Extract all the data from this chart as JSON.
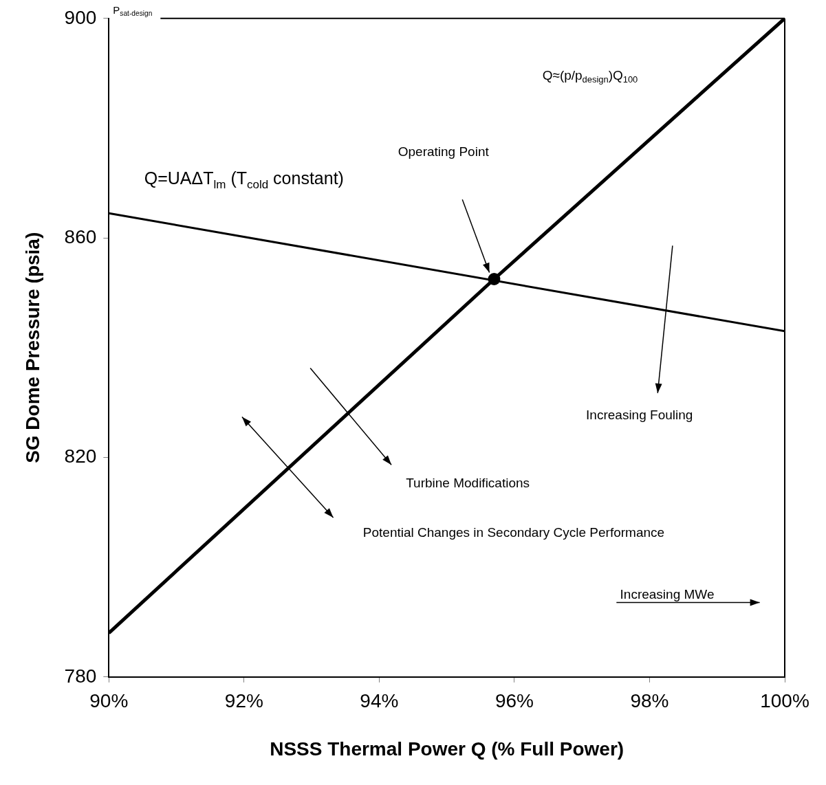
{
  "chart_data": {
    "type": "line",
    "xlabel": "NSSS Thermal Power Q (% Full Power)",
    "ylabel": "SG Dome Pressure (psia)",
    "xlim": [
      90,
      100
    ],
    "ylim": [
      780,
      900
    ],
    "xticks": [
      {
        "value": 90,
        "label": "90%"
      },
      {
        "value": 92,
        "label": "92%"
      },
      {
        "value": 94,
        "label": "94%"
      },
      {
        "value": 96,
        "label": "96%"
      },
      {
        "value": 98,
        "label": "98%"
      },
      {
        "value": 100,
        "label": "100%"
      }
    ],
    "yticks": [
      780,
      820,
      860,
      900
    ],
    "legend": false,
    "marker": "none",
    "series": [
      {
        "x": [
          90,
          95.7,
          100
        ],
        "values": [
          788,
          852.5,
          900
        ],
        "color": "#000000"
      },
      {
        "x": [
          90,
          100
        ],
        "values": [
          864.5,
          843
        ],
        "color": "#000000"
      },
      {
        "type": "scatter",
        "x": [
          95.7
        ],
        "values": [
          852.5
        ],
        "color": "#000000",
        "marker": "circle"
      }
    ],
    "ref_lines": [
      {
        "axis": "y",
        "value": 900,
        "label": "P$_{sat-design}$",
        "color": "#000000"
      }
    ],
    "annotations": [
      "Operating Point",
      "Q≈(p/p$_{design}$)Q$_{100}$",
      "Q=UAΔT$_{lm}$ (T$_{cold}$ constant)",
      "Increasing Fouling",
      "Turbine Modifications",
      "Potential Changes in Secondary Cycle Performance",
      "Increasing MWe"
    ]
  }
}
